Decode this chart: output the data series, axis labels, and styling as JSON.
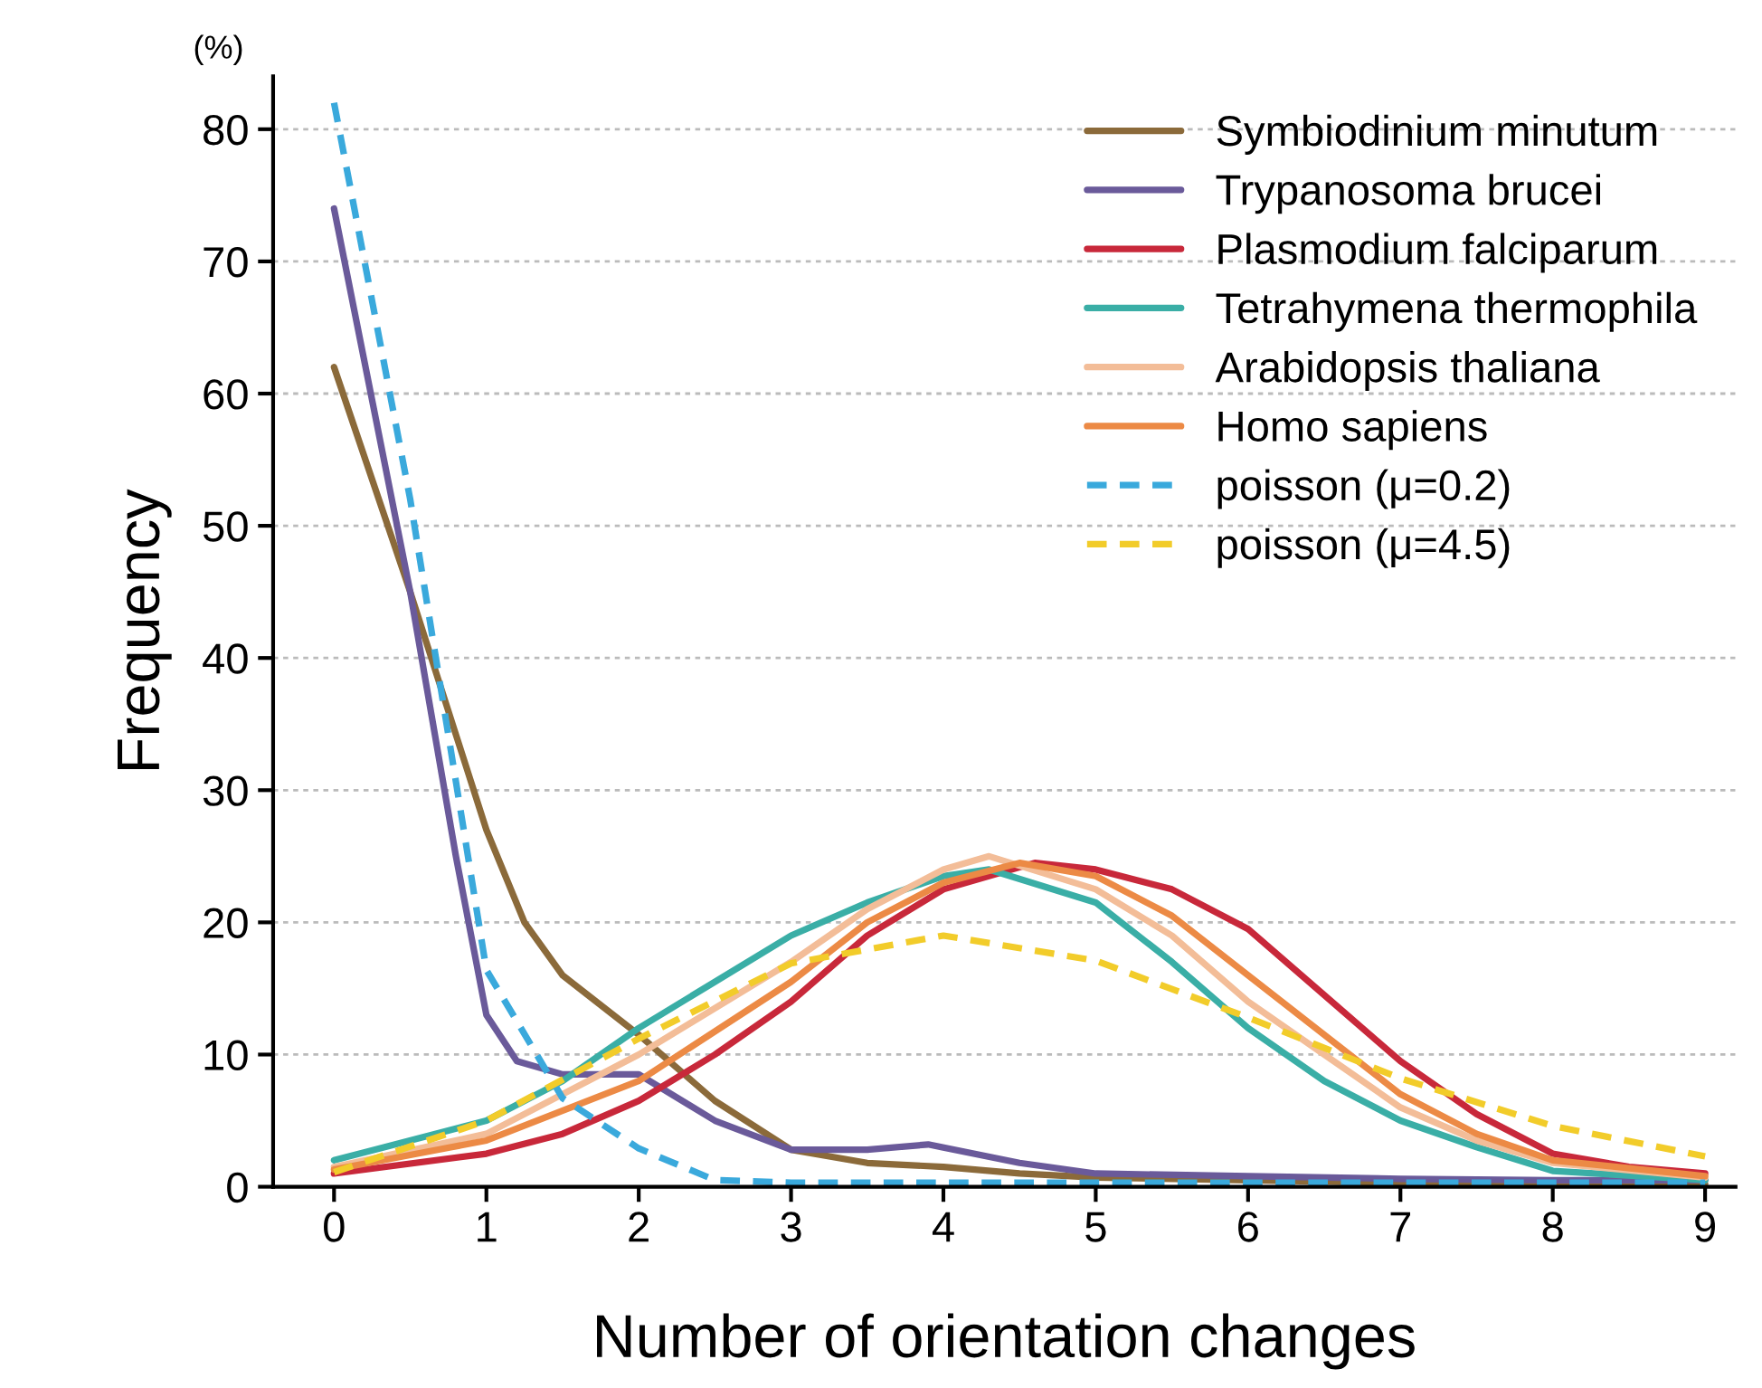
{
  "chart_data": {
    "type": "line",
    "xlabel": "Number of orientation changes",
    "ylabel": "Frequency",
    "annotations": [
      "(%)"
    ],
    "xlim": [
      -0.4,
      9.2
    ],
    "ylim": [
      0,
      84
    ],
    "xticks": [
      0,
      1,
      2,
      3,
      4,
      5,
      6,
      7,
      8,
      9
    ],
    "yticks": [
      0,
      10,
      20,
      30,
      40,
      50,
      60,
      70,
      80
    ],
    "grid": "y",
    "legend": "top right",
    "line_style": "solid",
    "marker": "none",
    "series": [
      {
        "name": "Symbiodinium minutum",
        "color": "#8b6a3a",
        "x": [
          0,
          0.5,
          1,
          1.25,
          1.5,
          2,
          2.5,
          3,
          3.5,
          4,
          4.5,
          5,
          6,
          7,
          8,
          9
        ],
        "values": [
          62,
          45,
          27,
          20,
          16,
          11.5,
          6.5,
          2.8,
          1.8,
          1.5,
          1.0,
          0.7,
          0.5,
          0.3,
          0.2,
          0.2
        ]
      },
      {
        "name": "Trypanosoma brucei",
        "color": "#6a5a9a",
        "x": [
          0,
          0.5,
          0.8,
          1,
          1.2,
          1.5,
          2,
          2.5,
          3,
          3.5,
          3.9,
          4.5,
          5,
          6,
          7,
          8,
          9
        ],
        "values": [
          74,
          45,
          25,
          13,
          9.5,
          8.5,
          8.5,
          5,
          2.8,
          2.8,
          3.2,
          1.8,
          1.0,
          0.8,
          0.6,
          0.5,
          0.5
        ]
      },
      {
        "name": "Plasmodium falciparum",
        "color": "#c8283a",
        "x": [
          0,
          1,
          1.5,
          2,
          2.5,
          3,
          3.5,
          4,
          4.6,
          5,
          5.5,
          6,
          6.5,
          7,
          7.5,
          8,
          8.5,
          9
        ],
        "values": [
          1,
          2.5,
          4,
          6.5,
          10,
          14,
          19,
          22.5,
          24.5,
          24,
          22.5,
          19.5,
          14.5,
          9.5,
          5.5,
          2.5,
          1.5,
          1
        ]
      },
      {
        "name": "Tetrahymena thermophila",
        "color": "#3aaea6",
        "x": [
          0,
          1,
          1.5,
          2,
          2.5,
          3,
          3.5,
          4,
          4.3,
          5,
          5.5,
          6,
          6.5,
          7,
          7.5,
          8,
          9
        ],
        "values": [
          2,
          5,
          8,
          12,
          15.5,
          19,
          21.5,
          23.5,
          24,
          21.5,
          17,
          12,
          8,
          5,
          3,
          1.2,
          0.5
        ]
      },
      {
        "name": "Arabidopsis thaliana",
        "color": "#f3bd98",
        "x": [
          0,
          1,
          2,
          3,
          3.5,
          4,
          4.3,
          5,
          5.5,
          6,
          6.5,
          7,
          7.5,
          8,
          9
        ],
        "values": [
          1.5,
          4,
          10,
          17,
          21,
          24,
          25,
          22.5,
          19,
          14,
          10,
          6,
          3.5,
          1.8,
          0.7
        ]
      },
      {
        "name": "Homo sapiens",
        "color": "#ec8a45",
        "x": [
          0,
          1,
          2,
          3,
          3.5,
          4,
          4.5,
          5,
          5.5,
          6,
          6.5,
          7,
          7.5,
          8,
          9
        ],
        "values": [
          1.3,
          3.5,
          8,
          15.5,
          20,
          23,
          24.5,
          23.5,
          20.5,
          16,
          11.5,
          7,
          4,
          2,
          0.8
        ]
      },
      {
        "name": "poisson (μ=0.2)",
        "color": "#3aa9dc",
        "line_style": "dashed",
        "x": [
          0,
          0.5,
          1,
          1.5,
          2,
          2.5,
          3,
          4,
          5,
          6,
          7,
          8,
          9
        ],
        "values": [
          82,
          52,
          16.4,
          6.7,
          2.9,
          0.5,
          0.3,
          0.3,
          0.3,
          0.3,
          0.3,
          0.3,
          0.3
        ]
      },
      {
        "name": "poisson (μ=4.5)",
        "color": "#f2cc2a",
        "line_style": "dashed",
        "x": [
          0,
          1,
          2,
          3,
          4,
          5,
          6,
          7,
          8,
          9
        ],
        "values": [
          1.1,
          5,
          11.2,
          16.9,
          19,
          17.1,
          12.8,
          8.2,
          4.6,
          2.3
        ]
      }
    ]
  }
}
